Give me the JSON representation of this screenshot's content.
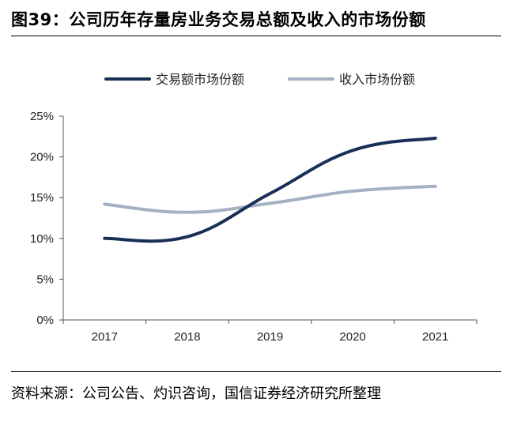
{
  "figure": {
    "title": "图39：公司历年存量房业务交易总额及收入的市场份额",
    "source": "资料来源：公司公告、灼识咨询，国信证券经济研究所整理"
  },
  "chart_data": {
    "type": "line",
    "title": "",
    "xlabel": "",
    "ylabel": "",
    "categories": [
      "2017",
      "2018",
      "2019",
      "2020",
      "2021"
    ],
    "y_ticks": [
      "0%",
      "5%",
      "10%",
      "15%",
      "20%",
      "25%"
    ],
    "ylim": [
      0,
      25
    ],
    "grid": false,
    "legend_position": "top",
    "series": [
      {
        "name": "交易额市场份额",
        "values": [
          10.0,
          10.2,
          15.5,
          20.8,
          22.3
        ],
        "color": "#1a2f57"
      },
      {
        "name": "收入市场份额",
        "values": [
          14.2,
          13.2,
          14.3,
          15.8,
          16.4
        ],
        "color": "#a3b1c3"
      }
    ]
  }
}
